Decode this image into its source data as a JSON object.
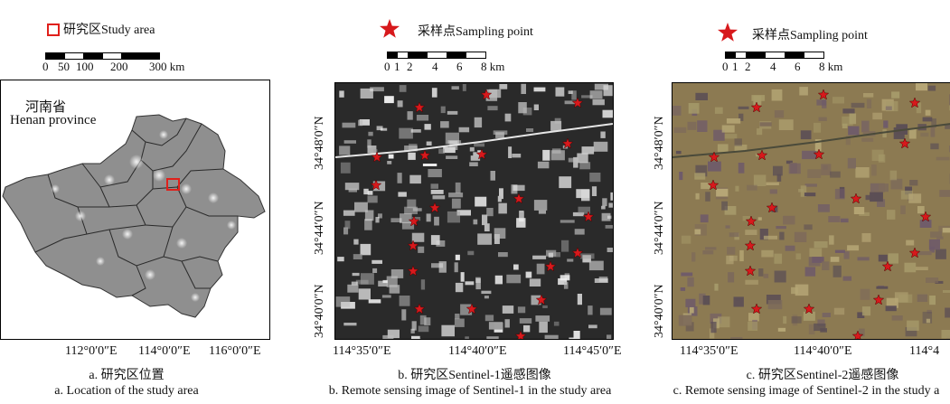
{
  "panel_a": {
    "legend_label": "研究区Study area",
    "scale_ticks": [
      "0",
      "50",
      "100",
      "200",
      "300 km"
    ],
    "province_cn": "河南省",
    "province_en": "Henan province",
    "x_ticks": [
      "112°0′0″E",
      "114°0′0″E",
      "116°0′0″E"
    ],
    "caption_cn": "a. 研究区位置",
    "caption_en": "a. Location of the study area"
  },
  "panel_b": {
    "legend_label": "采样点Sampling point",
    "scale_ticks": [
      "0",
      "1",
      "2",
      "4",
      "6",
      "8 km"
    ],
    "y_ticks": [
      "34°48′0″N",
      "34°44′0″N",
      "34°40′0″N"
    ],
    "x_ticks": [
      "114°35′0″E",
      "114°40′0″E",
      "114°45′0″E"
    ],
    "caption_cn": "b. 研究区Sentinel-1遥感图像",
    "caption_en": "b. Remote sensing image of Sentinel-1 in the study area"
  },
  "panel_c": {
    "legend_label": "采样点Sampling point",
    "scale_ticks": [
      "0",
      "1",
      "2",
      "4",
      "6",
      "8 km"
    ],
    "y_ticks": [
      "34°48′0″N",
      "34°44′0″N",
      "34°40′0″N"
    ],
    "x_ticks": [
      "114°35′0″E",
      "114°40′0″E",
      "114°4"
    ],
    "caption_cn": "c. 研究区Sentinel-2遥感图像",
    "caption_en": "c. Remote sensing image of Sentinel-2 in the study a"
  },
  "colors": {
    "star": "#d7191c",
    "study_box": "#e0201b",
    "s1_bg": "#2a2a2a",
    "s2_bg": "#8c7a52"
  },
  "icons": [
    "study-area-square-icon",
    "sampling-star-icon"
  ]
}
